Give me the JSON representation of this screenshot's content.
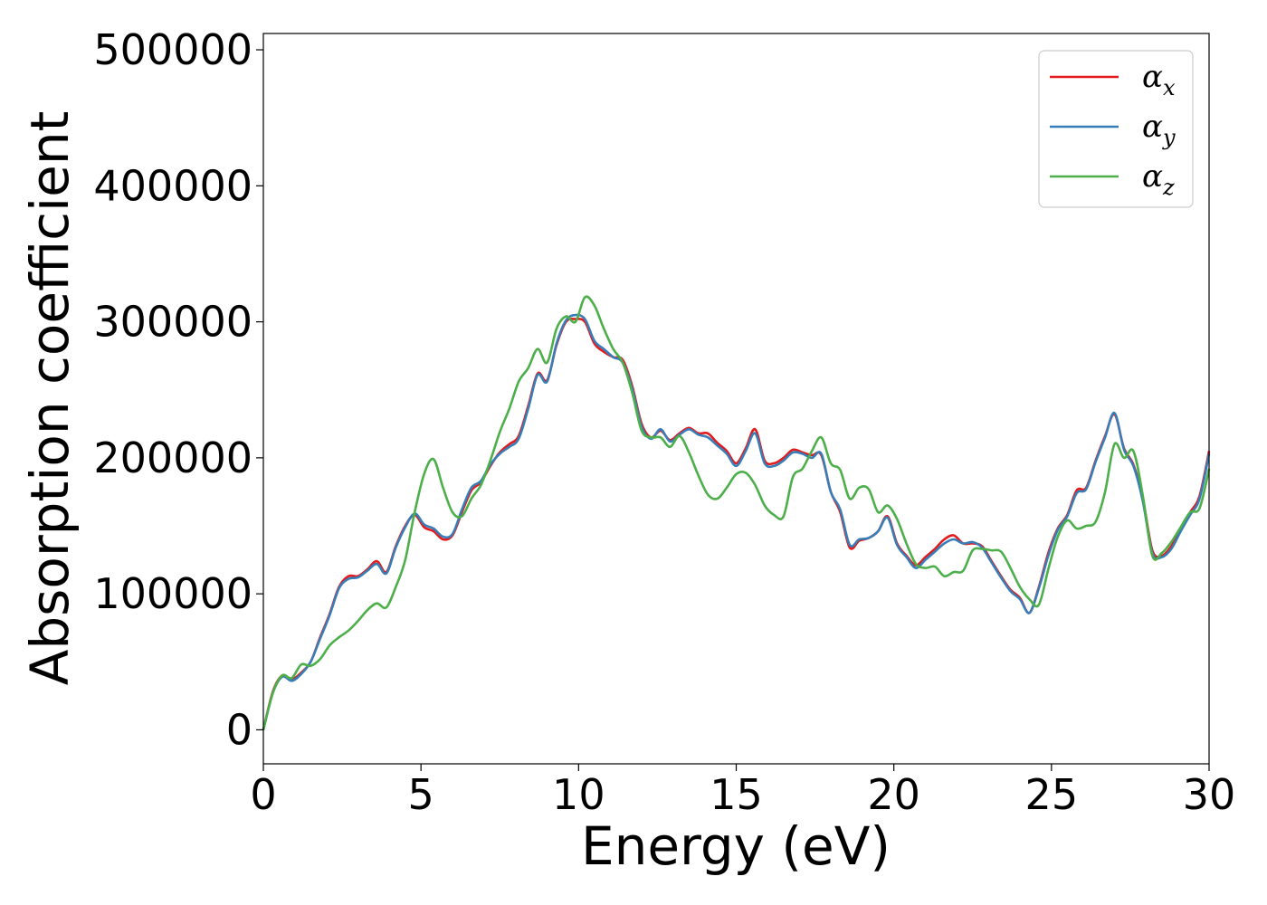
{
  "chart_data": {
    "type": "line",
    "xlabel": "Energy (eV)",
    "ylabel": "Absorption coefficient",
    "xlim": [
      0,
      30
    ],
    "ylim": [
      -25000,
      512000
    ],
    "xticks": [
      0,
      5,
      10,
      15,
      20,
      25,
      30
    ],
    "xtick_labels": [
      "0",
      "5",
      "10",
      "15",
      "20",
      "25",
      "30"
    ],
    "yticks": [
      0,
      100000,
      200000,
      300000,
      400000,
      500000
    ],
    "ytick_labels": [
      "0",
      "100000",
      "200000",
      "300000",
      "400000",
      "500000"
    ],
    "grid": false,
    "legend_position": "top-right",
    "series": [
      {
        "name": "α_x",
        "symbol": "α",
        "subscript": "x",
        "color": "#e41a1c",
        "x": [
          0,
          0.3,
          0.6,
          0.9,
          1.2,
          1.5,
          1.8,
          2.1,
          2.4,
          2.7,
          3.0,
          3.3,
          3.6,
          3.9,
          4.2,
          4.5,
          4.8,
          5.1,
          5.4,
          5.7,
          6.0,
          6.3,
          6.6,
          6.9,
          7.2,
          7.5,
          7.8,
          8.1,
          8.4,
          8.7,
          9.0,
          9.3,
          9.6,
          9.9,
          10.2,
          10.5,
          10.8,
          11.1,
          11.4,
          11.7,
          12.0,
          12.3,
          12.6,
          12.9,
          13.2,
          13.5,
          13.8,
          14.1,
          14.4,
          14.7,
          15.0,
          15.3,
          15.6,
          15.9,
          16.2,
          16.5,
          16.8,
          17.1,
          17.4,
          17.7,
          18.0,
          18.3,
          18.6,
          18.9,
          19.2,
          19.5,
          19.8,
          20.1,
          20.4,
          20.7,
          21.0,
          21.3,
          21.6,
          21.9,
          22.2,
          22.5,
          22.8,
          23.1,
          23.4,
          23.7,
          24.0,
          24.3,
          24.6,
          24.9,
          25.2,
          25.5,
          25.8,
          26.1,
          26.4,
          26.7,
          27.0,
          27.3,
          27.6,
          27.9,
          28.2,
          28.5,
          28.8,
          29.1,
          29.4,
          29.7,
          30.0
        ],
        "y": [
          0,
          28000,
          40000,
          37000,
          42000,
          50000,
          68000,
          85000,
          105000,
          113000,
          113000,
          118000,
          124000,
          116000,
          135000,
          150000,
          158000,
          149000,
          146000,
          140000,
          143000,
          160000,
          176000,
          182000,
          194000,
          204000,
          210000,
          216000,
          238000,
          262000,
          257000,
          283000,
          300000,
          302000,
          300000,
          284000,
          278000,
          274000,
          272000,
          253000,
          225000,
          215000,
          220000,
          213000,
          218000,
          222000,
          218000,
          218000,
          211000,
          205000,
          196000,
          207000,
          221000,
          198000,
          196000,
          200000,
          206000,
          204000,
          202000,
          202000,
          175000,
          160000,
          134000,
          139000,
          141000,
          146000,
          157000,
          137000,
          128000,
          121000,
          127000,
          133000,
          140000,
          143000,
          137000,
          137000,
          135000,
          124000,
          113000,
          103000,
          97000,
          86000,
          105000,
          130000,
          148000,
          158000,
          176000,
          178000,
          198000,
          216000,
          232000,
          207000,
          195000,
          170000,
          132000,
          128000,
          135000,
          148000,
          160000,
          172000,
          205000
        ]
      },
      {
        "name": "α_y",
        "symbol": "α",
        "subscript": "y",
        "color": "#377eb8",
        "x": [
          0,
          0.3,
          0.6,
          0.9,
          1.2,
          1.5,
          1.8,
          2.1,
          2.4,
          2.7,
          3.0,
          3.3,
          3.6,
          3.9,
          4.2,
          4.5,
          4.8,
          5.1,
          5.4,
          5.7,
          6.0,
          6.3,
          6.6,
          6.9,
          7.2,
          7.5,
          7.8,
          8.1,
          8.4,
          8.7,
          9.0,
          9.3,
          9.6,
          9.9,
          10.2,
          10.5,
          10.8,
          11.1,
          11.4,
          11.7,
          12.0,
          12.3,
          12.6,
          12.9,
          13.2,
          13.5,
          13.8,
          14.1,
          14.4,
          14.7,
          15.0,
          15.3,
          15.6,
          15.9,
          16.2,
          16.5,
          16.8,
          17.1,
          17.4,
          17.7,
          18.0,
          18.3,
          18.6,
          18.9,
          19.2,
          19.5,
          19.8,
          20.1,
          20.4,
          20.7,
          21.0,
          21.3,
          21.6,
          21.9,
          22.2,
          22.5,
          22.8,
          23.1,
          23.4,
          23.7,
          24.0,
          24.3,
          24.6,
          24.9,
          25.2,
          25.5,
          25.8,
          26.1,
          26.4,
          26.7,
          27.0,
          27.3,
          27.6,
          27.9,
          28.2,
          28.5,
          28.8,
          29.1,
          29.4,
          29.7,
          30.0
        ],
        "y": [
          0,
          27000,
          39000,
          36000,
          41000,
          50000,
          67000,
          84000,
          104000,
          111000,
          112000,
          117000,
          122000,
          115000,
          134000,
          149000,
          159000,
          151000,
          148000,
          142000,
          144000,
          162000,
          178000,
          183000,
          195000,
          203000,
          208000,
          214000,
          236000,
          261000,
          256000,
          284000,
          301000,
          305000,
          302000,
          286000,
          280000,
          274000,
          270000,
          251000,
          223000,
          214000,
          221000,
          212000,
          217000,
          221000,
          217000,
          215000,
          209000,
          203000,
          194000,
          205000,
          218000,
          196000,
          194000,
          198000,
          204000,
          203000,
          200000,
          203000,
          175000,
          162000,
          136000,
          140000,
          141000,
          146000,
          156000,
          136000,
          127000,
          119000,
          125000,
          131000,
          137000,
          140000,
          137000,
          138000,
          134000,
          123000,
          112000,
          102000,
          96000,
          86000,
          104000,
          128000,
          147000,
          157000,
          174000,
          177000,
          197000,
          215000,
          233000,
          206000,
          194000,
          168000,
          130000,
          127000,
          133000,
          146000,
          158000,
          170000,
          203000
        ]
      },
      {
        "name": "α_z",
        "symbol": "α",
        "subscript": "z",
        "color": "#4daf4a",
        "x": [
          0,
          0.3,
          0.6,
          0.9,
          1.2,
          1.5,
          1.8,
          2.1,
          2.4,
          2.7,
          3.0,
          3.3,
          3.6,
          3.9,
          4.2,
          4.5,
          4.8,
          5.1,
          5.4,
          5.7,
          6.0,
          6.3,
          6.6,
          6.9,
          7.2,
          7.5,
          7.8,
          8.1,
          8.4,
          8.7,
          9.0,
          9.3,
          9.6,
          9.9,
          10.2,
          10.5,
          10.8,
          11.1,
          11.4,
          11.7,
          12.0,
          12.3,
          12.6,
          12.9,
          13.2,
          13.5,
          13.8,
          14.1,
          14.4,
          14.7,
          15.0,
          15.3,
          15.6,
          15.9,
          16.2,
          16.5,
          16.8,
          17.1,
          17.4,
          17.7,
          18.0,
          18.3,
          18.6,
          18.9,
          19.2,
          19.5,
          19.8,
          20.1,
          20.4,
          20.7,
          21.0,
          21.3,
          21.6,
          21.9,
          22.2,
          22.5,
          22.8,
          23.1,
          23.4,
          23.7,
          24.0,
          24.3,
          24.6,
          24.9,
          25.2,
          25.5,
          25.8,
          26.1,
          26.4,
          26.7,
          27.0,
          27.3,
          27.6,
          27.9,
          28.2,
          28.5,
          28.8,
          29.1,
          29.4,
          29.7,
          30.0
        ],
        "y": [
          0,
          27000,
          40000,
          38000,
          48000,
          47000,
          52000,
          62000,
          68000,
          73000,
          80000,
          88000,
          93000,
          90000,
          105000,
          125000,
          160000,
          188000,
          199000,
          178000,
          160000,
          157000,
          170000,
          180000,
          198000,
          219000,
          236000,
          256000,
          266000,
          280000,
          270000,
          295000,
          304000,
          300000,
          318000,
          312000,
          295000,
          280000,
          270000,
          248000,
          220000,
          215000,
          215000,
          208000,
          216000,
          204000,
          187000,
          173000,
          170000,
          178000,
          188000,
          189000,
          180000,
          165000,
          158000,
          157000,
          186000,
          192000,
          205000,
          215000,
          196000,
          191000,
          170000,
          178000,
          177000,
          160000,
          165000,
          155000,
          137000,
          122000,
          119000,
          120000,
          113000,
          116000,
          117000,
          132000,
          133000,
          132000,
          131000,
          119000,
          105000,
          96000,
          92000,
          118000,
          142000,
          154000,
          148000,
          150000,
          153000,
          175000,
          210000,
          200000,
          205000,
          172000,
          128000,
          130000,
          138000,
          149000,
          160000,
          163000,
          192000
        ]
      }
    ]
  }
}
